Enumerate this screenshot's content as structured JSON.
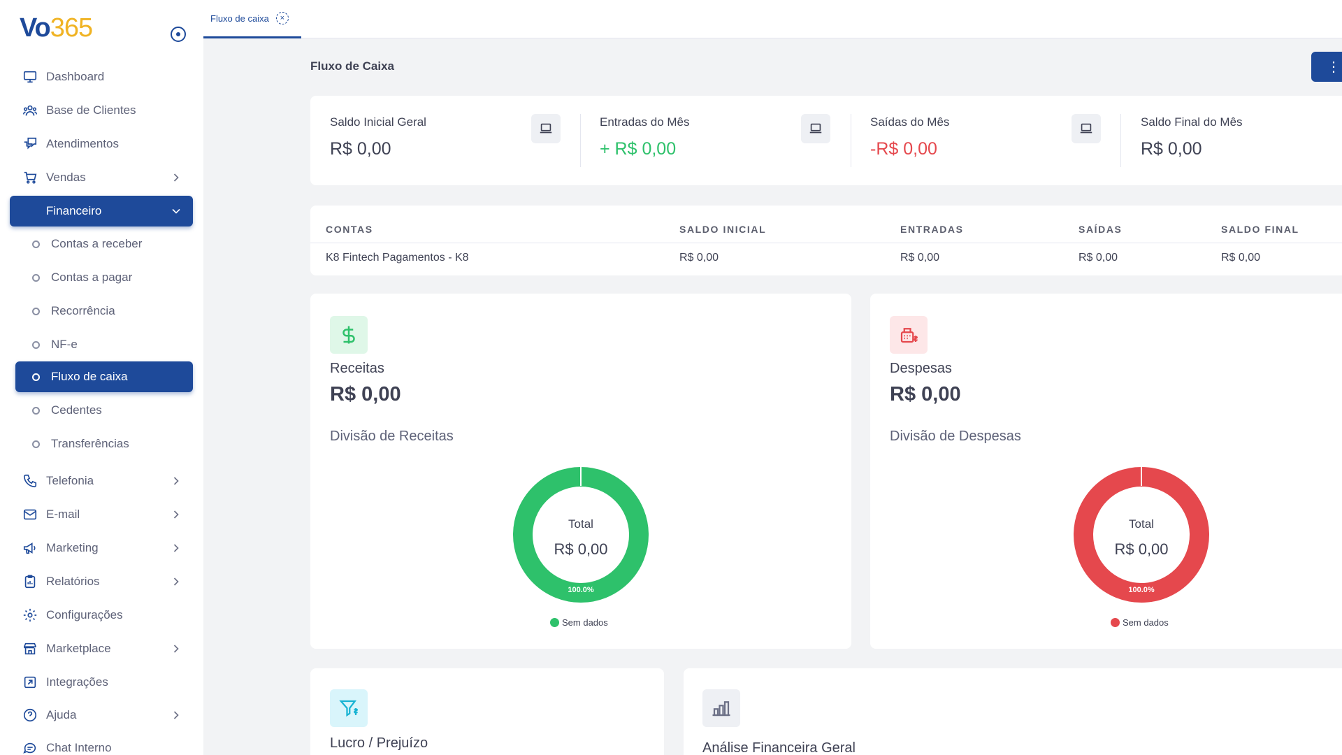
{
  "brand": {
    "logo_part1": "Vo",
    "logo_part2": "365"
  },
  "sidebar": {
    "items": [
      {
        "label": "Dashboard",
        "icon": "monitor-icon"
      },
      {
        "label": "Base de Clientes",
        "icon": "users-icon"
      },
      {
        "label": "Atendimentos",
        "icon": "chat-bubbles-icon"
      },
      {
        "label": "Vendas",
        "icon": "cart-icon"
      },
      {
        "label": "Financeiro",
        "icon": "wallet-icon"
      },
      {
        "label": "Telefonia",
        "icon": "phone-icon"
      },
      {
        "label": "E-mail",
        "icon": "mail-icon"
      },
      {
        "label": "Marketing",
        "icon": "megaphone-icon"
      },
      {
        "label": "Relatórios",
        "icon": "clipboard-icon"
      },
      {
        "label": "Configurações",
        "icon": "gear-icon"
      },
      {
        "label": "Marketplace",
        "icon": "store-icon"
      },
      {
        "label": "Integrações",
        "icon": "plug-icon"
      },
      {
        "label": "Ajuda",
        "icon": "help-icon"
      },
      {
        "label": "Chat Interno",
        "icon": "chat-icon"
      }
    ],
    "financeiro_sub": [
      "Contas a receber",
      "Contas a pagar",
      "Recorrência",
      "NF-e",
      "Fluxo de caixa",
      "Cedentes",
      "Transferências"
    ]
  },
  "tabs": [
    {
      "label": "Fluxo de caixa"
    }
  ],
  "page": {
    "title": "Fluxo de Caixa",
    "menu_icon": "⋮"
  },
  "summary": [
    {
      "label": "Saldo Inicial Geral",
      "value": "R$ 0,00"
    },
    {
      "label": "Entradas do Mês",
      "value": "+ R$ 0,00"
    },
    {
      "label": "Saídas do Mês",
      "value": "-R$ 0,00"
    },
    {
      "label": "Saldo Final do Mês",
      "value": "R$ 0,00"
    }
  ],
  "accounts": {
    "headers": [
      "CONTAS",
      "SALDO INICIAL",
      "ENTRADAS",
      "SAÍDAS",
      "SALDO FINAL"
    ],
    "rows": [
      [
        "K8 Fintech Pagamentos - K8",
        "R$ 0,00",
        "R$ 0,00",
        "R$ 0,00",
        "R$ 0,00"
      ]
    ]
  },
  "receitas": {
    "title": "Receitas",
    "value": "R$ 0,00",
    "subtitle": "Divisão de Receitas",
    "donut_center_label": "Total",
    "donut_center_value": "R$ 0,00",
    "percent": "100.0%",
    "legend": "Sem dados",
    "color": "#2ec16b"
  },
  "despesas": {
    "title": "Despesas",
    "value": "R$ 0,00",
    "subtitle": "Divisão de Despesas",
    "donut_center_label": "Total",
    "donut_center_value": "R$ 0,00",
    "percent": "100.0%",
    "legend": "Sem dados",
    "color": "#e5484d"
  },
  "lucro": {
    "title": "Lucro / Prejuízo"
  },
  "analise": {
    "title": "Análise Financeira Geral"
  },
  "colors": {
    "primary": "#1e4a9a",
    "accent": "#f0b323",
    "green": "#2ec16b",
    "red": "#e5484d"
  }
}
